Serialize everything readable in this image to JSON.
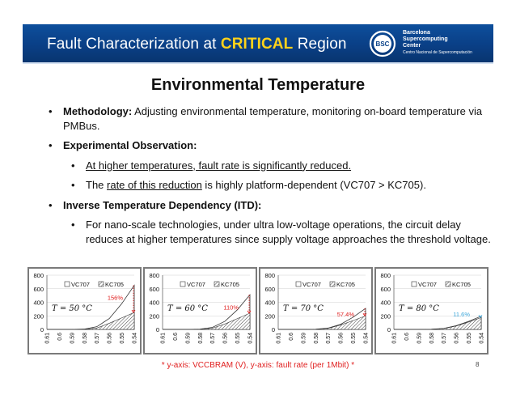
{
  "header": {
    "title_prefix": "Fault Characterization at ",
    "title_accent": "CRITICAL",
    "title_suffix": " Region",
    "logo": {
      "mark": "BSC",
      "line1": "Barcelona",
      "line2": "Supercomputing",
      "line3": "Center",
      "subtitle": "Centro Nacional de Supercomputación"
    }
  },
  "slide": {
    "title": "Environmental Temperature",
    "methodology_label": "Methodology:",
    "methodology_text": " Adjusting environmental temperature, monitoring on-board temperature via PMBus.",
    "observation_label": "Experimental Observation:",
    "obs1": "At higher temperatures, fault rate is significantly reduced.",
    "obs2_pre": "The ",
    "obs2_link": "rate of this reduction",
    "obs2_post": " is highly platform-dependent (VC707 > KC705).",
    "itd_label": "Inverse Temperature Dependency (ITD):",
    "itd_text": "For nano-scale technologies, under ultra low-voltage operations, the circuit delay reduces at higher temperatures since supply voltage approaches the threshold voltage."
  },
  "footnote": "* y-axis: VCCBRAM (V), y-axis: fault rate (per 1Mbit) *",
  "page_number": "8",
  "colors": {
    "header_bg": "#0a4289",
    "accent": "#ffd21a",
    "annotation_red": "#e02020",
    "annotation_blue": "#3fa9dc"
  },
  "chart_data": [
    {
      "type": "area",
      "temperature_label": "T = 50 °C",
      "annotation": "156%",
      "annotation_color": "#e02020",
      "x": [
        "0.61",
        "0.6",
        "0.59",
        "0.58",
        "0.57",
        "0.56",
        "0.55",
        "0.54"
      ],
      "ylim": [
        0,
        800
      ],
      "yticks": [
        "0",
        "200",
        "400",
        "600",
        "800"
      ],
      "legend": [
        "VC707",
        "KC705"
      ],
      "series": [
        {
          "name": "VC707",
          "values": [
            0,
            0,
            0,
            5,
            40,
            160,
            380,
            650
          ]
        },
        {
          "name": "KC705",
          "values": [
            0,
            0,
            0,
            3,
            20,
            90,
            170,
            250
          ]
        }
      ]
    },
    {
      "type": "area",
      "temperature_label": "T = 60 °C",
      "annotation": "110%",
      "annotation_color": "#e02020",
      "x": [
        "0.61",
        "0.6",
        "0.59",
        "0.58",
        "0.57",
        "0.56",
        "0.55",
        "0.54"
      ],
      "ylim": [
        0,
        800
      ],
      "yticks": [
        "0",
        "200",
        "400",
        "600",
        "800"
      ],
      "legend": [
        "VC707",
        "KC705"
      ],
      "series": [
        {
          "name": "VC707",
          "values": [
            0,
            0,
            0,
            4,
            30,
            120,
            290,
            510
          ]
        },
        {
          "name": "KC705",
          "values": [
            0,
            0,
            0,
            3,
            18,
            80,
            160,
            240
          ]
        }
      ]
    },
    {
      "type": "area",
      "temperature_label": "T = 70 °C",
      "annotation": "57.4%",
      "annotation_color": "#e02020",
      "x": [
        "0.61",
        "0.6",
        "0.59",
        "0.58",
        "0.57",
        "0.56",
        "0.55",
        "0.54"
      ],
      "ylim": [
        0,
        800
      ],
      "yticks": [
        "0",
        "200",
        "400",
        "600",
        "800"
      ],
      "legend": [
        "VC707",
        "KC705"
      ],
      "series": [
        {
          "name": "VC707",
          "values": [
            0,
            0,
            0,
            3,
            20,
            75,
            180,
            310
          ]
        },
        {
          "name": "KC705",
          "values": [
            0,
            0,
            0,
            2,
            15,
            65,
            130,
            200
          ]
        }
      ]
    },
    {
      "type": "area",
      "temperature_label": "T = 80 °C",
      "annotation": "11.6%",
      "annotation_color": "#3fa9dc",
      "x": [
        "0.61",
        "0.6",
        "0.59",
        "0.58",
        "0.57",
        "0.56",
        "0.55",
        "0.54"
      ],
      "ylim": [
        0,
        800
      ],
      "yticks": [
        "0",
        "200",
        "400",
        "600",
        "800"
      ],
      "legend": [
        "VC707",
        "KC705"
      ],
      "series": [
        {
          "name": "VC707",
          "values": [
            0,
            0,
            0,
            2,
            15,
            55,
            120,
            195
          ]
        },
        {
          "name": "KC705",
          "values": [
            0,
            0,
            0,
            2,
            13,
            50,
            110,
            175
          ]
        }
      ]
    }
  ]
}
